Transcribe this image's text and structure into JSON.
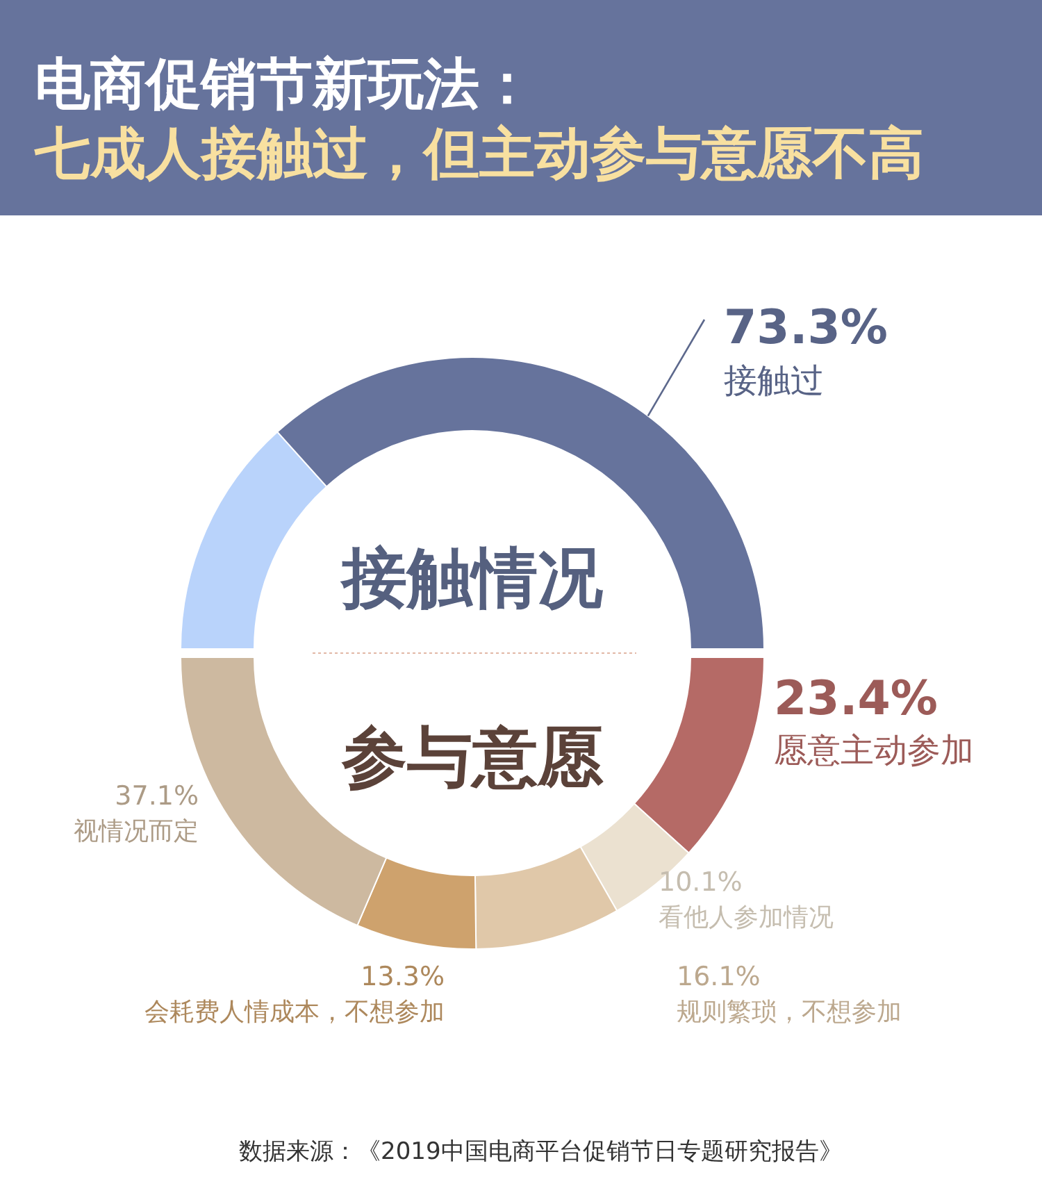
{
  "chart_data": [
    {
      "type": "donut",
      "title": "电商促销节新玩法：",
      "subtitle": "七成人接触过，但主动参与意愿不高",
      "categories": [
        null,
        "接触过"
      ],
      "values": [
        26.7,
        73.3
      ],
      "colors": [
        "#b9d3fb",
        "#66739c"
      ],
      "value_labels": [
        null,
        "73.3%"
      ],
      "annotations": [
        "接触情况"
      ]
    },
    {
      "type": "donut",
      "categories": [
        "愿意主动参加",
        "看他人参加情况",
        "规则繁琐，不想参加",
        "会耗费人情成本，不想参加",
        "视情况而定"
      ],
      "values": [
        23.4,
        10.1,
        16.1,
        13.3,
        37.1
      ],
      "colors": [
        "#b56a66",
        "#ebe1d0",
        "#e0c8a9",
        "#cea26d",
        "#cdb9a0"
      ],
      "value_labels": [
        "23.4%",
        "10.1%",
        "16.1%",
        "13.3%",
        "37.1%"
      ],
      "annotations": [
        "参与意愿",
        "数据来源：《2019中国电商平台促销节日专题研究报告》"
      ]
    }
  ]
}
